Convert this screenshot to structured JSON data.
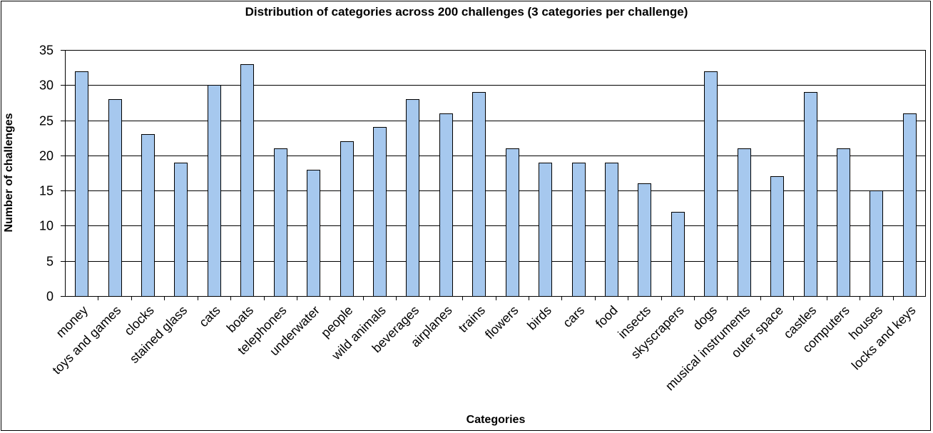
{
  "chart_data": {
    "type": "bar",
    "title": "Distribution of categories across 200 challenges (3 categories per challenge)",
    "xlabel": "Categories",
    "ylabel": "Number of challenges",
    "ylim": [
      0,
      35
    ],
    "ytick_step": 5,
    "grid": true,
    "legend": "none",
    "bar_color": "#a6c8ee",
    "categories": [
      "money",
      "toys and games",
      "clocks",
      "stained glass",
      "cats",
      "boats",
      "telephones",
      "underwater",
      "people",
      "wild animals",
      "beverages",
      "airplanes",
      "trains",
      "flowers",
      "birds",
      "cars",
      "food",
      "insects",
      "skyscrapers",
      "dogs",
      "musical instruments",
      "outer space",
      "castles",
      "computers",
      "houses",
      "locks and keys"
    ],
    "values": [
      32,
      28,
      23,
      19,
      30,
      33,
      21,
      18,
      22,
      24,
      28,
      26,
      29,
      21,
      19,
      19,
      19,
      16,
      12,
      32,
      21,
      17,
      29,
      21,
      15,
      26
    ]
  }
}
